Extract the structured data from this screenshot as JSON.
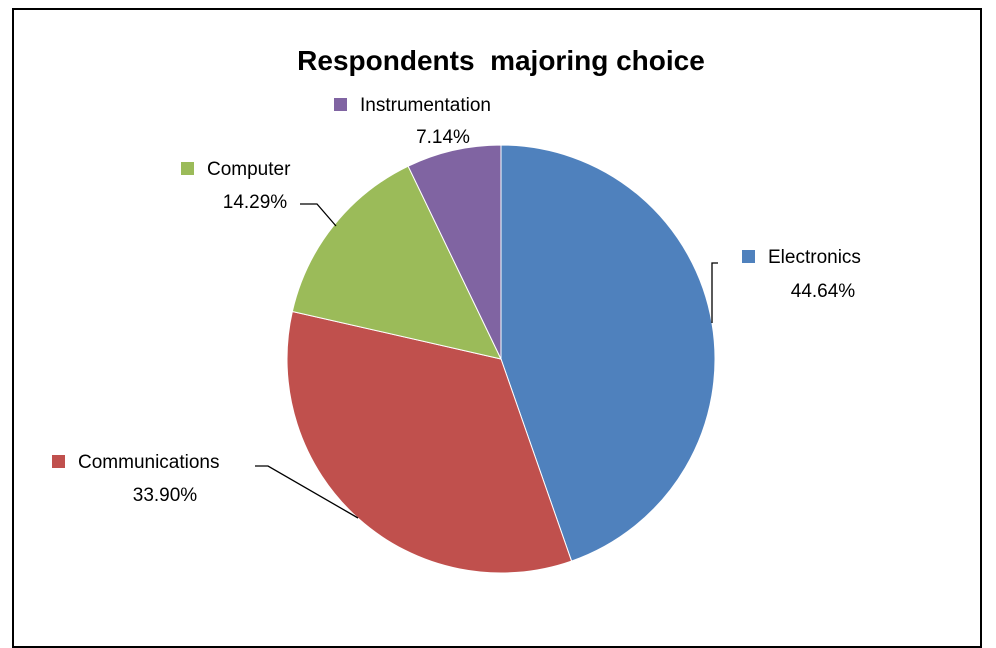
{
  "chart_data": {
    "type": "pie",
    "title": "Respondents  majoring choice",
    "slices": [
      {
        "label": "Electronics",
        "value": 44.64,
        "value_label": "44.64%",
        "color": "#4F81BD"
      },
      {
        "label": "Communications",
        "value": 33.9,
        "value_label": "33.90%",
        "color": "#C0504D"
      },
      {
        "label": "Computer",
        "value": 14.29,
        "value_label": "14.29%",
        "color": "#9BBB59"
      },
      {
        "label": "Instrumentation",
        "value": 7.14,
        "value_label": "7.14%",
        "color": "#8064A2"
      }
    ],
    "start_angle": "12 o'clock",
    "direction": "clockwise",
    "legend": "none",
    "data_labels": "outside with leader lines"
  }
}
